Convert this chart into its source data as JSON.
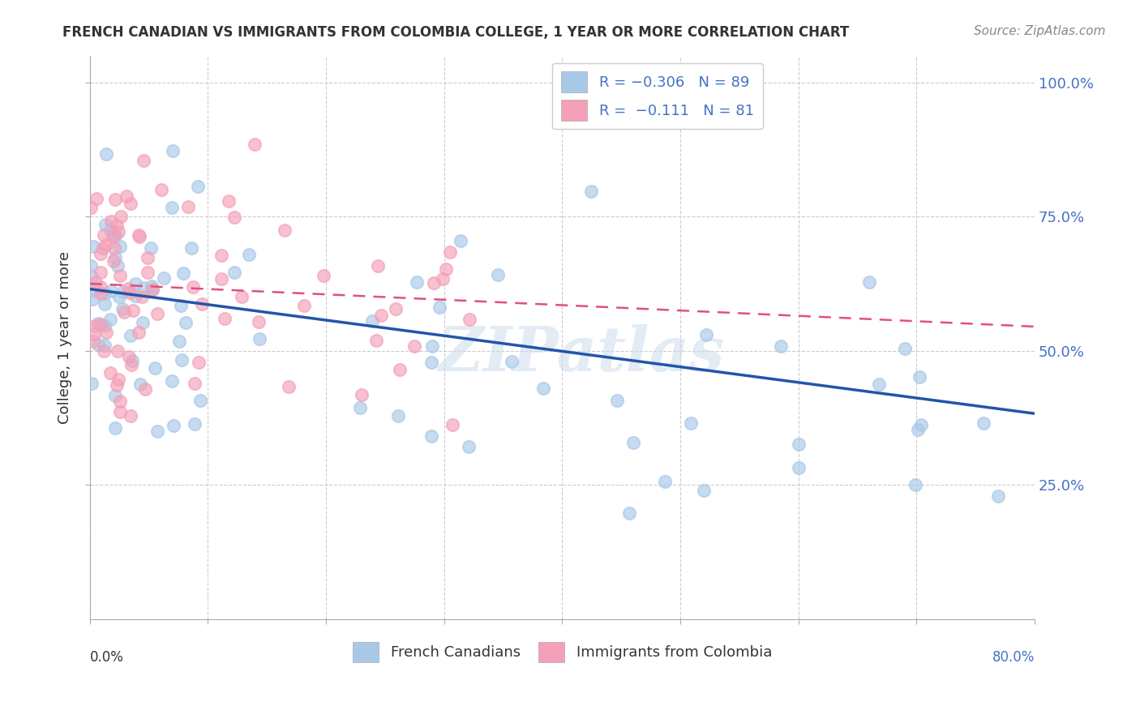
{
  "title": "FRENCH CANADIAN VS IMMIGRANTS FROM COLOMBIA COLLEGE, 1 YEAR OR MORE CORRELATION CHART",
  "source": "Source: ZipAtlas.com",
  "ylabel": "College, 1 year or more",
  "legend_label_blue": "R = -0.306   N = 89",
  "legend_label_pink": "R =  -0.111   N = 81",
  "legend_label_blue_short": "French Canadians",
  "legend_label_pink_short": "Immigrants from Colombia",
  "blue_color": "#a8c8e8",
  "pink_color": "#f4a0b8",
  "blue_line_color": "#2255aa",
  "pink_line_color": "#e05080",
  "watermark": "ZIPatlas",
  "blue_R": -0.306,
  "blue_N": 89,
  "pink_R": -0.111,
  "pink_N": 81,
  "xlim": [
    0.0,
    0.8
  ],
  "ylim": [
    0.0,
    1.05
  ],
  "blue_intercept": 0.615,
  "blue_slope": -0.29,
  "pink_intercept": 0.625,
  "pink_slope": -0.1
}
